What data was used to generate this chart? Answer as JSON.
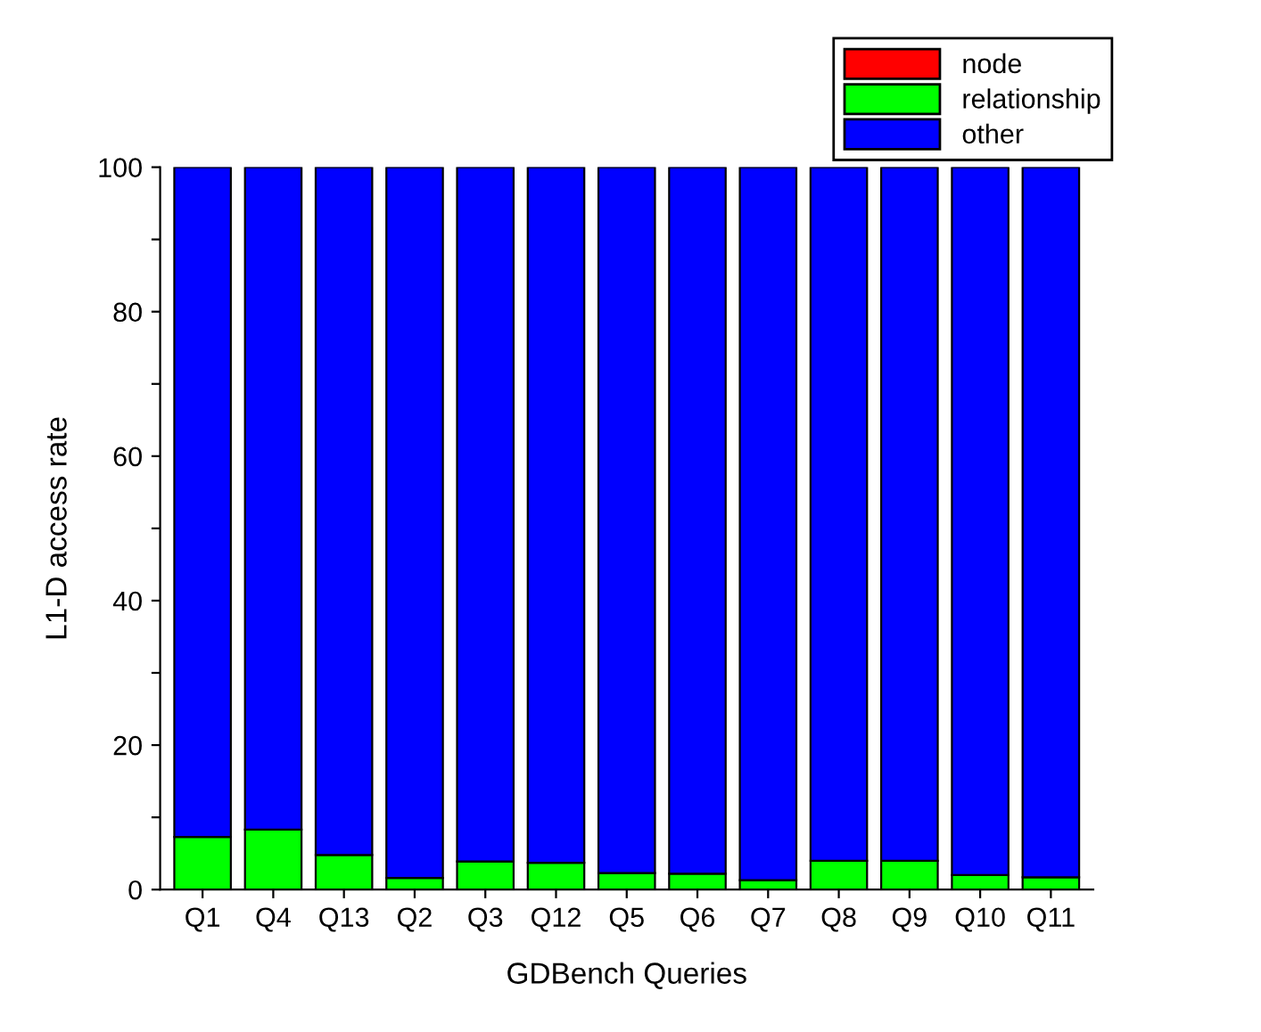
{
  "chart_data": {
    "type": "bar",
    "stacked": true,
    "xlabel": "GDBench Queries",
    "ylabel": "L1-D access rate",
    "categories": [
      "Q1",
      "Q4",
      "Q13",
      "Q2",
      "Q3",
      "Q12",
      "Q5",
      "Q6",
      "Q7",
      "Q8",
      "Q9",
      "Q10",
      "Q11"
    ],
    "series": [
      {
        "name": "node",
        "color": "#ff0000",
        "values": [
          0,
          0,
          0,
          0,
          0,
          0,
          0,
          0,
          0,
          0,
          0,
          0,
          0
        ]
      },
      {
        "name": "relationship",
        "color": "#00ff00",
        "values": [
          7.3,
          8.3,
          4.8,
          1.6,
          3.9,
          3.7,
          2.3,
          2.2,
          1.3,
          4.0,
          4.0,
          2.0,
          1.7
        ]
      },
      {
        "name": "other",
        "color": "#0000ff",
        "values": [
          92.7,
          91.7,
          95.2,
          98.4,
          96.1,
          96.3,
          97.7,
          97.8,
          98.7,
          96.0,
          96.0,
          98.0,
          98.3
        ]
      }
    ],
    "ylim": [
      0,
      100
    ],
    "yticks": [
      0,
      {
        "value": 10,
        "label": null
      },
      20,
      {
        "value": 30,
        "label": null
      },
      40,
      {
        "value": 50,
        "label": null
      },
      60,
      {
        "value": 70,
        "label": null
      },
      80,
      {
        "value": 90,
        "label": null
      },
      100
    ],
    "grid": false,
    "legend": "top right"
  }
}
